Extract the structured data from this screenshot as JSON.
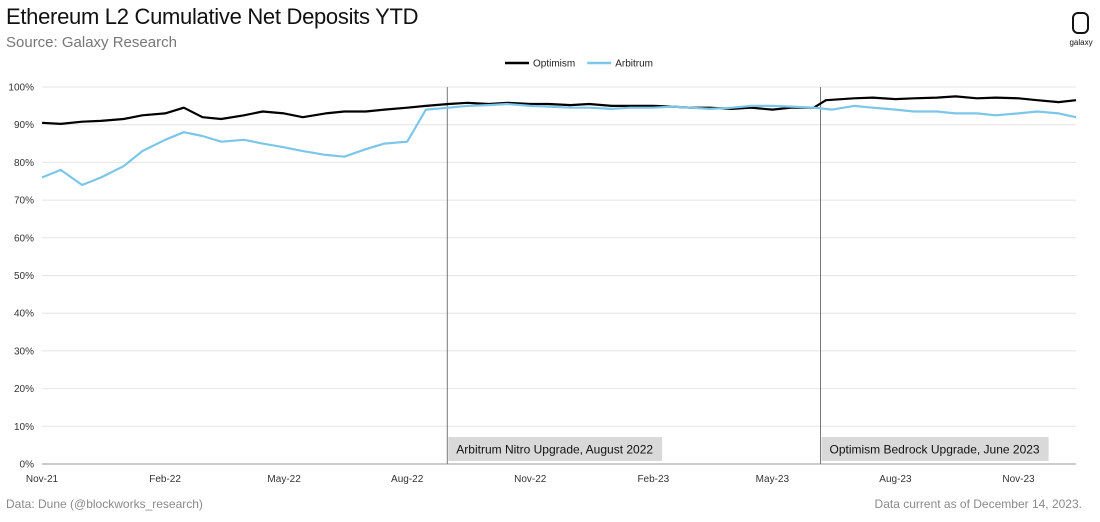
{
  "header": {
    "title": "Ethereum L2 Cumulative Net Deposits YTD",
    "subtitle": "Source: Galaxy Research"
  },
  "logo": {
    "text": "galaxy"
  },
  "footer": {
    "left": "Data: Dune (@blockworks_research)",
    "right": "Data current as of December 14, 2023."
  },
  "chart_data": {
    "type": "line",
    "title": "Ethereum L2 Cumulative Net Deposits YTD",
    "xlabel": "",
    "ylabel": "",
    "x_range": [
      "2021-11-01",
      "2023-12-14"
    ],
    "x_ticks": [
      {
        "date": "2021-11-01",
        "label": "Nov-21"
      },
      {
        "date": "2022-02-01",
        "label": "Feb-22"
      },
      {
        "date": "2022-05-01",
        "label": "May-22"
      },
      {
        "date": "2022-08-01",
        "label": "Aug-22"
      },
      {
        "date": "2022-11-01",
        "label": "Nov-22"
      },
      {
        "date": "2023-02-01",
        "label": "Feb-23"
      },
      {
        "date": "2023-05-01",
        "label": "May-23"
      },
      {
        "date": "2023-08-01",
        "label": "Aug-23"
      },
      {
        "date": "2023-11-01",
        "label": "Nov-23"
      }
    ],
    "ylim": [
      0,
      100
    ],
    "y_ticks": [
      0,
      10,
      20,
      30,
      40,
      50,
      60,
      70,
      80,
      90,
      100
    ],
    "y_tick_labels": [
      "0%",
      "10%",
      "20%",
      "30%",
      "40%",
      "50%",
      "60%",
      "70%",
      "80%",
      "90%",
      "100%"
    ],
    "grid": true,
    "legend": "top-center",
    "series": [
      {
        "name": "Optimism",
        "color": "#000000",
        "points": [
          [
            "2021-11-01",
            90.5
          ],
          [
            "2021-11-15",
            90.2
          ],
          [
            "2021-12-01",
            90.8
          ],
          [
            "2021-12-15",
            91.0
          ],
          [
            "2022-01-01",
            91.5
          ],
          [
            "2022-01-15",
            92.5
          ],
          [
            "2022-02-01",
            93.0
          ],
          [
            "2022-02-15",
            94.5
          ],
          [
            "2022-03-01",
            92.0
          ],
          [
            "2022-03-15",
            91.5
          ],
          [
            "2022-04-01",
            92.5
          ],
          [
            "2022-04-15",
            93.5
          ],
          [
            "2022-05-01",
            93.0
          ],
          [
            "2022-05-15",
            92.0
          ],
          [
            "2022-06-01",
            93.0
          ],
          [
            "2022-06-15",
            93.5
          ],
          [
            "2022-07-01",
            93.5
          ],
          [
            "2022-07-15",
            94.0
          ],
          [
            "2022-08-01",
            94.5
          ],
          [
            "2022-08-15",
            95.0
          ],
          [
            "2022-09-01",
            95.5
          ],
          [
            "2022-09-15",
            95.8
          ],
          [
            "2022-10-01",
            95.5
          ],
          [
            "2022-10-15",
            95.8
          ],
          [
            "2022-11-01",
            95.5
          ],
          [
            "2022-11-15",
            95.5
          ],
          [
            "2022-12-01",
            95.2
          ],
          [
            "2022-12-15",
            95.5
          ],
          [
            "2023-01-01",
            95.0
          ],
          [
            "2023-01-15",
            95.0
          ],
          [
            "2023-02-01",
            95.0
          ],
          [
            "2023-02-15",
            94.8
          ],
          [
            "2023-03-01",
            94.5
          ],
          [
            "2023-03-15",
            94.5
          ],
          [
            "2023-04-01",
            94.2
          ],
          [
            "2023-04-15",
            94.5
          ],
          [
            "2023-05-01",
            94.0
          ],
          [
            "2023-05-15",
            94.5
          ],
          [
            "2023-06-01",
            94.5
          ],
          [
            "2023-06-10",
            96.5
          ],
          [
            "2023-07-01",
            97.0
          ],
          [
            "2023-07-15",
            97.2
          ],
          [
            "2023-08-01",
            96.8
          ],
          [
            "2023-08-15",
            97.0
          ],
          [
            "2023-09-01",
            97.2
          ],
          [
            "2023-09-15",
            97.5
          ],
          [
            "2023-10-01",
            97.0
          ],
          [
            "2023-10-15",
            97.2
          ],
          [
            "2023-11-01",
            97.0
          ],
          [
            "2023-11-15",
            96.5
          ],
          [
            "2023-12-01",
            96.0
          ],
          [
            "2023-12-14",
            96.5
          ]
        ]
      },
      {
        "name": "Arbitrum",
        "color": "#7cc6ea",
        "points": [
          [
            "2021-11-01",
            76.0
          ],
          [
            "2021-11-15",
            78.0
          ],
          [
            "2021-12-01",
            74.0
          ],
          [
            "2021-12-15",
            76.0
          ],
          [
            "2022-01-01",
            79.0
          ],
          [
            "2022-01-15",
            83.0
          ],
          [
            "2022-02-01",
            86.0
          ],
          [
            "2022-02-15",
            88.0
          ],
          [
            "2022-03-01",
            87.0
          ],
          [
            "2022-03-15",
            85.5
          ],
          [
            "2022-04-01",
            86.0
          ],
          [
            "2022-04-15",
            85.0
          ],
          [
            "2022-05-01",
            84.0
          ],
          [
            "2022-05-15",
            83.0
          ],
          [
            "2022-06-01",
            82.0
          ],
          [
            "2022-06-15",
            81.5
          ],
          [
            "2022-07-01",
            83.5
          ],
          [
            "2022-07-15",
            85.0
          ],
          [
            "2022-08-01",
            85.5
          ],
          [
            "2022-08-15",
            94.0
          ],
          [
            "2022-09-01",
            94.5
          ],
          [
            "2022-09-15",
            95.0
          ],
          [
            "2022-10-01",
            95.2
          ],
          [
            "2022-10-15",
            95.5
          ],
          [
            "2022-11-01",
            95.0
          ],
          [
            "2022-11-15",
            94.8
          ],
          [
            "2022-12-01",
            94.5
          ],
          [
            "2022-12-15",
            94.5
          ],
          [
            "2023-01-01",
            94.2
          ],
          [
            "2023-01-15",
            94.5
          ],
          [
            "2023-02-01",
            94.5
          ],
          [
            "2023-02-15",
            94.8
          ],
          [
            "2023-03-01",
            94.5
          ],
          [
            "2023-03-15",
            94.2
          ],
          [
            "2023-04-01",
            94.5
          ],
          [
            "2023-04-15",
            95.0
          ],
          [
            "2023-05-01",
            95.0
          ],
          [
            "2023-05-15",
            94.8
          ],
          [
            "2023-06-01",
            94.5
          ],
          [
            "2023-06-15",
            94.0
          ],
          [
            "2023-07-01",
            95.0
          ],
          [
            "2023-07-15",
            94.5
          ],
          [
            "2023-08-01",
            94.0
          ],
          [
            "2023-08-15",
            93.5
          ],
          [
            "2023-09-01",
            93.5
          ],
          [
            "2023-09-15",
            93.0
          ],
          [
            "2023-10-01",
            93.0
          ],
          [
            "2023-10-15",
            92.5
          ],
          [
            "2023-11-01",
            93.0
          ],
          [
            "2023-11-15",
            93.5
          ],
          [
            "2023-12-01",
            93.0
          ],
          [
            "2023-12-14",
            92.0
          ]
        ]
      }
    ],
    "annotations": [
      {
        "date": "2022-08-31",
        "label": "Arbitrum Nitro Upgrade, August 2022"
      },
      {
        "date": "2023-06-06",
        "label": "Optimism Bedrock Upgrade, June 2023"
      }
    ]
  }
}
